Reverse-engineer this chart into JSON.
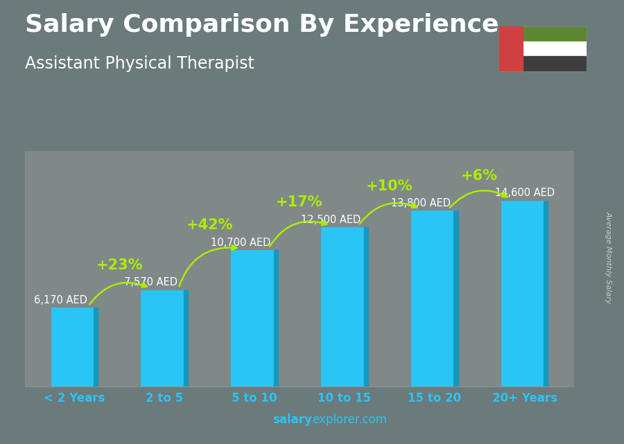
{
  "title": "Salary Comparison By Experience",
  "subtitle": "Assistant Physical Therapist",
  "categories": [
    "< 2 Years",
    "2 to 5",
    "5 to 10",
    "10 to 15",
    "15 to 20",
    "20+ Years"
  ],
  "values": [
    6170,
    7570,
    10700,
    12500,
    13800,
    14600
  ],
  "bar_color": "#29c5f6",
  "bar_color_dark": "#1499be",
  "value_labels": [
    "6,170 AED",
    "7,570 AED",
    "10,700 AED",
    "12,500 AED",
    "13,800 AED",
    "14,600 AED"
  ],
  "pct_labels": [
    "+23%",
    "+42%",
    "+17%",
    "+10%",
    "+6%"
  ],
  "title_color": "#ffffff",
  "subtitle_color": "#ffffff",
  "value_label_color": "#ffffff",
  "pct_color": "#aaee00",
  "xtick_color": "#29c5f6",
  "background_color": "#6b7a7a",
  "footer_salary_color": "#29c5f6",
  "footer_rest_color": "#29c5f6",
  "ylabel_text": "Average Monthly Salary",
  "ylabel_color": "#cccccc",
  "ylim": [
    0,
    18500
  ],
  "title_fontsize": 26,
  "subtitle_fontsize": 17,
  "value_label_fontsize": 10.5,
  "pct_fontsize": 15,
  "xlabel_fontsize": 12,
  "footer_fontsize": 12,
  "ylabel_fontsize": 8,
  "footer_salary": "salary",
  "footer_rest": "explorer.com"
}
